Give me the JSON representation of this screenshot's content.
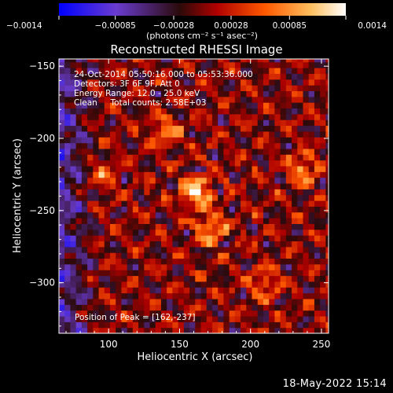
{
  "chart_data": {
    "type": "heatmap",
    "title": "Reconstructed RHESSI Image",
    "xlabel": "Heliocentric X (arcsec)",
    "ylabel": "Heliocentric Y (arcsec)",
    "xlim": [
      65,
      255
    ],
    "ylim": [
      -335,
      -145
    ],
    "x_ticks": [
      100,
      150,
      200,
      250
    ],
    "y_ticks": [
      -150,
      -200,
      -250,
      -300
    ],
    "x_tick_labels": [
      "100",
      "150",
      "200",
      "250"
    ],
    "y_tick_labels": [
      "−150",
      "−200",
      "−250",
      "−300"
    ],
    "colorbar": {
      "range": [
        -0.0014,
        0.0014
      ],
      "ticks": [
        -0.0014,
        -0.00085,
        -0.00028,
        0.00028,
        0.00085,
        0.0014
      ],
      "tick_labels": [
        "−0.0014",
        "−0.00085",
        "−0.00028",
        "0.00028",
        "0.00085",
        "0.0014"
      ],
      "unit_label": "(photons cm⁻² s⁻¹ asec⁻²)"
    },
    "annotations": [
      "24-Oct-2014 05:50:16.000 to 05:53:36.000",
      "Detectors: 3F 6F 9F, Att 0",
      "Energy Range: 12.0 - 25.0 keV",
      "Clean     Total counts: 2.58E+03"
    ],
    "peak_label": "Position of Peak = [162,-237]",
    "peak": {
      "x": 162,
      "y": -237
    },
    "sources": [
      {
        "x": 162,
        "y": -237,
        "value": 0.0014
      },
      {
        "x": 172,
        "y": -262,
        "value": 0.001
      },
      {
        "x": 237,
        "y": -221,
        "value": 0.0009
      },
      {
        "x": 140,
        "y": -195,
        "value": 0.0008
      },
      {
        "x": 210,
        "y": -300,
        "value": 0.0007
      },
      {
        "x": 95,
        "y": -225,
        "value": 0.0006
      }
    ]
  },
  "footer": {
    "timestamp": "18-May-2022 15:14"
  },
  "colors": {
    "background": "#000000",
    "colormap": [
      "#0000ff",
      "#6a3ccf",
      "#2a0a0a",
      "#b00000",
      "#ff5a00",
      "#ffc060",
      "#ffffff"
    ]
  }
}
